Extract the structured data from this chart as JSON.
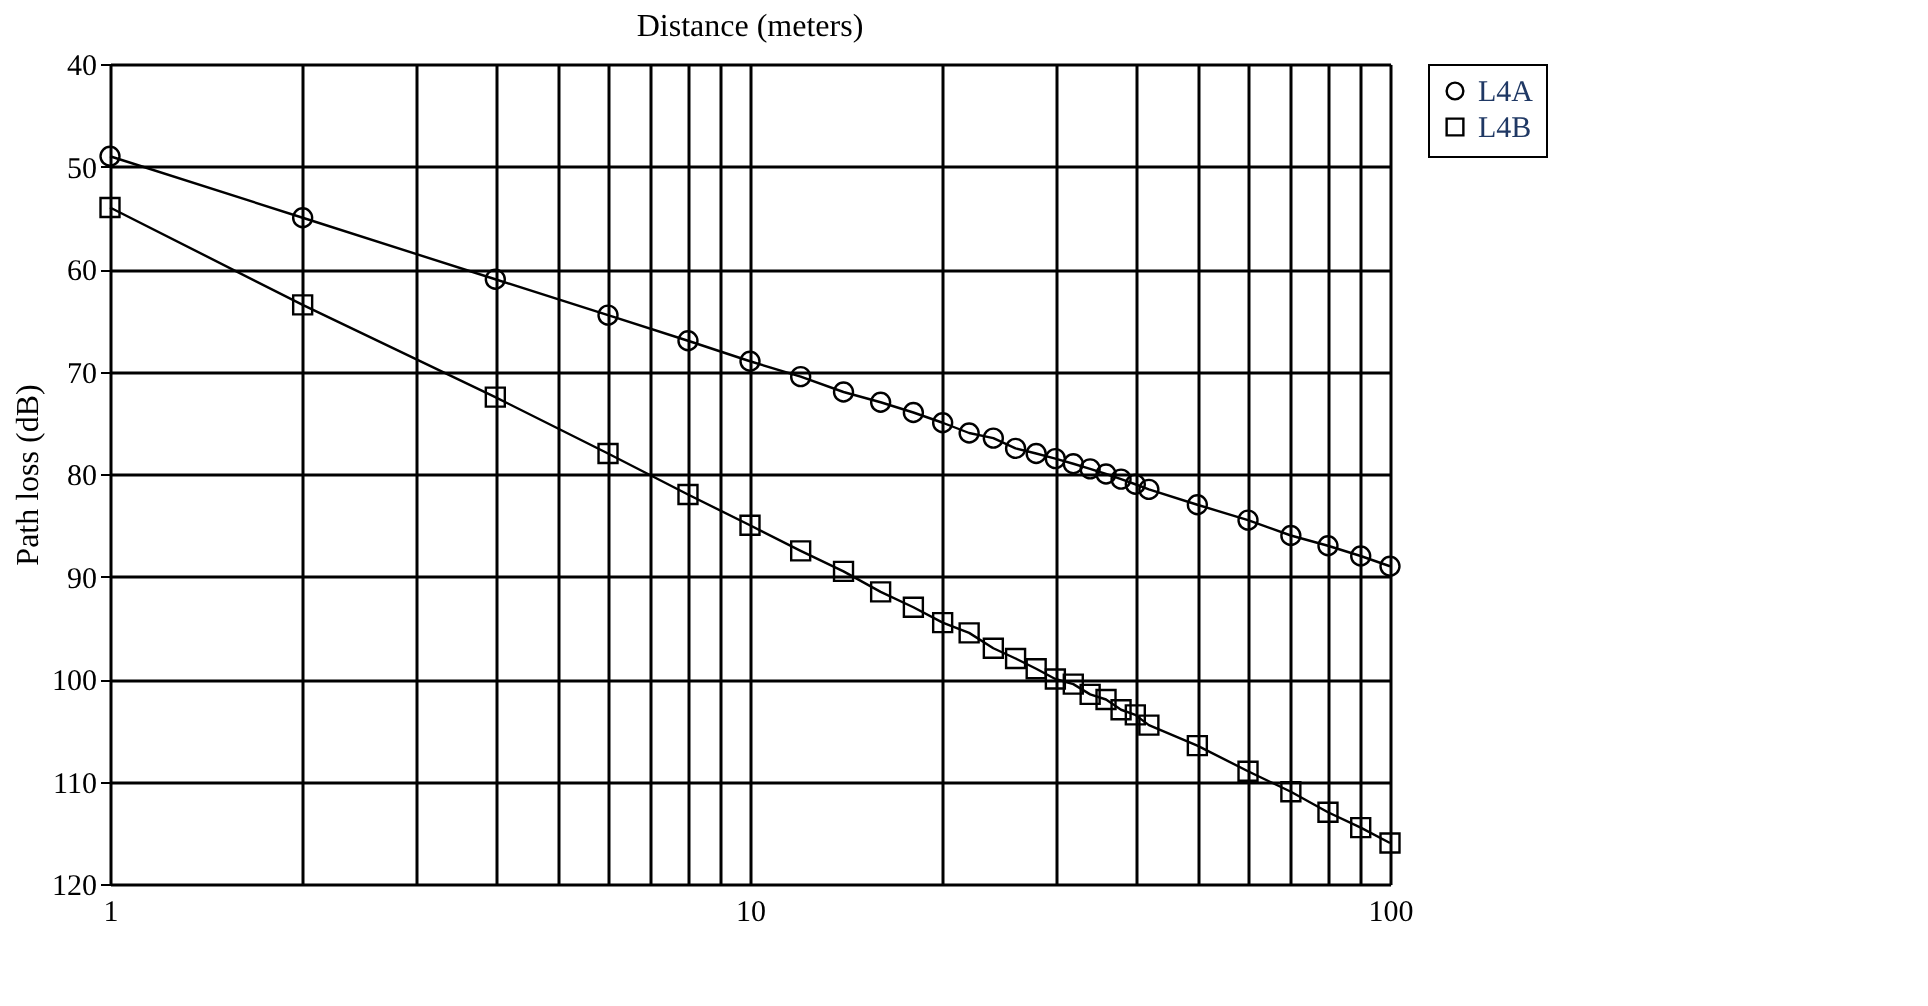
{
  "chart_data": {
    "type": "line",
    "xlabel": "Distance (meters)",
    "ylabel": "Path loss (dB)",
    "x": [
      1,
      2,
      4,
      6,
      8,
      10,
      12,
      14,
      16,
      18,
      20,
      22,
      24,
      26,
      28,
      30,
      32,
      34,
      36,
      38,
      40,
      42,
      50,
      60,
      70,
      80,
      90,
      100
    ],
    "series": [
      {
        "name": "L4A",
        "color": "#000000",
        "marker": "circle",
        "values": [
          49,
          55,
          61,
          64.5,
          67,
          69,
          70.5,
          72,
          73,
          74,
          75,
          76,
          76.5,
          77.5,
          78,
          78.5,
          79,
          79.5,
          80,
          80.5,
          81,
          81.5,
          83,
          84.5,
          86,
          87,
          88,
          89
        ]
      },
      {
        "name": "L4B",
        "color": "#000000",
        "marker": "square",
        "values": [
          54,
          63.5,
          72.5,
          78,
          82,
          85,
          87.5,
          89.5,
          91.5,
          93,
          94.5,
          95.5,
          97,
          98,
          99,
          100,
          100.5,
          101.5,
          102,
          103,
          103.5,
          104.5,
          106.5,
          109,
          111,
          113,
          114.5,
          116
        ]
      }
    ],
    "log": "x",
    "xlim": [
      1,
      100
    ],
    "ylim": [
      120,
      40
    ],
    "xticks": [
      1,
      {
        "value": 2,
        "label": null
      },
      {
        "value": 3,
        "label": null
      },
      {
        "value": 4,
        "label": null
      },
      {
        "value": 5,
        "label": null
      },
      {
        "value": 6,
        "label": null
      },
      {
        "value": 7,
        "label": null
      },
      {
        "value": 8,
        "label": null
      },
      {
        "value": 9,
        "label": null
      },
      10,
      {
        "value": 20,
        "label": null
      },
      {
        "value": 30,
        "label": null
      },
      {
        "value": 40,
        "label": null
      },
      {
        "value": 50,
        "label": null
      },
      {
        "value": 60,
        "label": null
      },
      {
        "value": 70,
        "label": null
      },
      {
        "value": 80,
        "label": null
      },
      {
        "value": 90,
        "label": null
      },
      100
    ],
    "yticks": [
      40,
      50,
      60,
      70,
      80,
      90,
      100,
      110,
      120
    ],
    "grid": true,
    "legend": "right",
    "line_style": "solid"
  }
}
